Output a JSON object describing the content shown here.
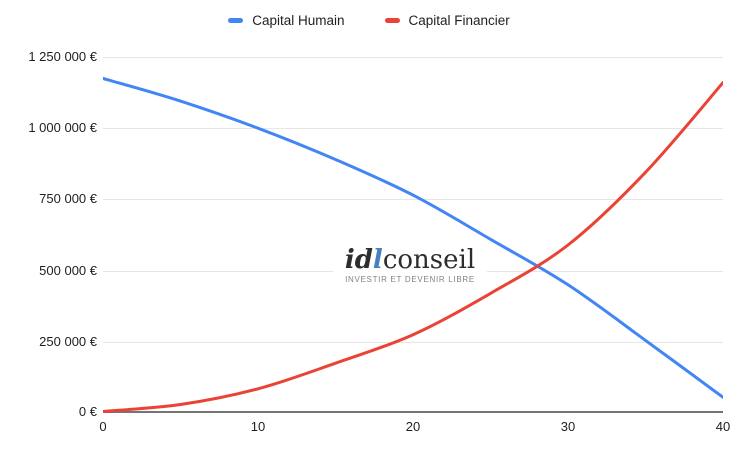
{
  "legend": {
    "items": [
      {
        "label": "Capital Humain",
        "color": "#4285f4"
      },
      {
        "label": "Capital Financier",
        "color": "#ea4335"
      }
    ]
  },
  "watermark": {
    "brand_prefix": "id",
    "brand_accent": "l",
    "brand_suffix": "conseil",
    "tagline": "INVESTIR ET DEVENIR LIBRE",
    "accent_color": "#4682be"
  },
  "chart_data": {
    "type": "line",
    "x": [
      0,
      5,
      10,
      15,
      20,
      25,
      30,
      35,
      40
    ],
    "series": [
      {
        "name": "Capital Humain",
        "color": "#4285f4",
        "values": [
          1175000,
          1095000,
          1000000,
          890000,
          765000,
          610000,
          450000,
          255000,
          55000
        ]
      },
      {
        "name": "Capital Financier",
        "color": "#ea4335",
        "values": [
          0,
          30000,
          85000,
          175000,
          275000,
          420000,
          590000,
          845000,
          1160000
        ]
      }
    ],
    "title": "",
    "xlabel": "",
    "ylabel": "",
    "xlim": [
      0,
      40
    ],
    "ylim": [
      0,
      1250000
    ],
    "x_ticks": [
      0,
      10,
      20,
      30,
      40
    ],
    "x_tick_labels": [
      "0",
      "10",
      "20",
      "30",
      "40"
    ],
    "y_ticks": [
      0,
      250000,
      500000,
      750000,
      1000000,
      1250000
    ],
    "y_tick_labels": [
      "0 €",
      "250 000 €",
      "500 000 €",
      "750 000 €",
      "1 000 000 €",
      "1 250 000 €"
    ],
    "grid": "horizontal",
    "legend_position": "top",
    "crossing_point": {
      "x": 28,
      "value": 520000
    },
    "colors": {
      "gridline": "#e6e6e6",
      "baseline": "#757575",
      "tick_text": "#1f1f1f"
    }
  }
}
